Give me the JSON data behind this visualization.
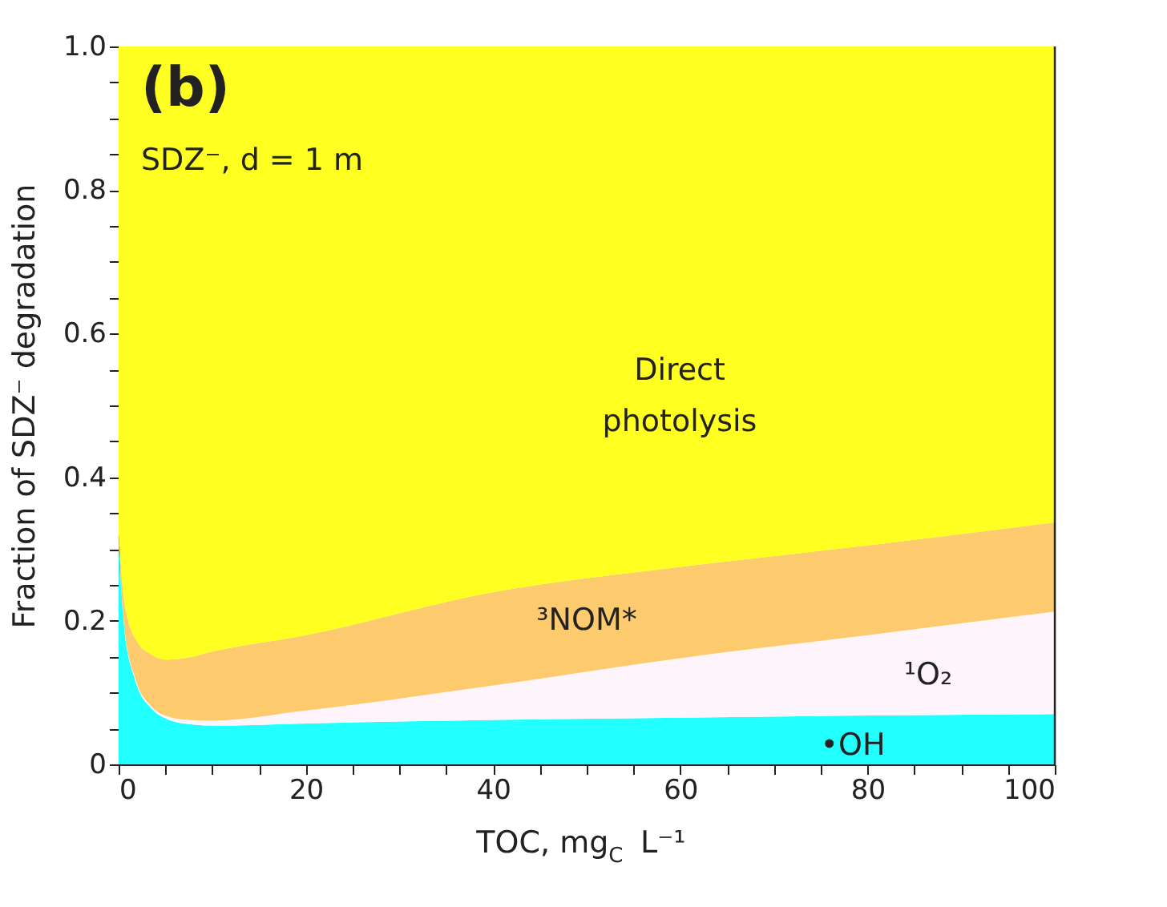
{
  "chart_data": {
    "type": "area",
    "stacked": true,
    "xlabel": "TOC, mg$_{C}$ L⁻¹",
    "ylabel": "Fraction of SDZ⁻ degradation",
    "x": [
      0,
      0.6,
      1.8,
      3.5,
      5.2,
      7.5,
      10,
      20,
      40,
      60,
      80,
      100
    ],
    "series": [
      {
        "name": "•OH",
        "color": "#22ffff",
        "values": [
          0.306,
          0.19,
          0.116,
          0.078,
          0.063,
          0.056,
          0.054,
          0.057,
          0.062,
          0.065,
          0.068,
          0.07
        ]
      },
      {
        "name": "¹O₂",
        "color": "#fdf5fb",
        "values": [
          0,
          0.002,
          0.003,
          0.003,
          0.004,
          0.006,
          0.007,
          0.018,
          0.048,
          0.083,
          0.112,
          0.143
        ]
      },
      {
        "name": "³NOM*",
        "color": "#fdcb6e",
        "values": [
          0.014,
          0.036,
          0.056,
          0.072,
          0.079,
          0.087,
          0.096,
          0.105,
          0.13,
          0.127,
          0.125,
          0.124
        ]
      },
      {
        "name": "Direct photolysis",
        "color": "#ffff22",
        "values": [
          0.68,
          0.772,
          0.825,
          0.847,
          0.854,
          0.851,
          0.843,
          0.82,
          0.76,
          0.725,
          0.695,
          0.663
        ]
      }
    ],
    "xlim": [
      0,
      100
    ],
    "xticks": [
      0,
      {
        "value": 5,
        "label": null
      },
      {
        "value": 10,
        "label": null
      },
      {
        "value": 15,
        "label": null
      },
      20,
      {
        "value": 25,
        "label": null
      },
      {
        "value": 30,
        "label": null
      },
      {
        "value": 35,
        "label": null
      },
      40,
      {
        "value": 45,
        "label": null
      },
      {
        "value": 50,
        "label": null
      },
      {
        "value": 55,
        "label": null
      },
      60,
      {
        "value": 65,
        "label": null
      },
      {
        "value": 70,
        "label": null
      },
      {
        "value": 75,
        "label": null
      },
      80,
      {
        "value": 85,
        "label": null
      },
      {
        "value": 90,
        "label": null
      },
      {
        "value": 95,
        "label": null
      },
      100
    ],
    "ylim": [
      0,
      1
    ],
    "yticks": [
      0,
      {
        "value": 0.05,
        "label": null
      },
      {
        "value": 0.1,
        "label": null
      },
      {
        "value": 0.15,
        "label": null
      },
      0.2,
      {
        "value": 0.25,
        "label": null
      },
      {
        "value": 0.3,
        "label": null
      },
      {
        "value": 0.35,
        "label": null
      },
      0.4,
      {
        "value": 0.45,
        "label": null
      },
      {
        "value": 0.5,
        "label": null
      },
      {
        "value": 0.55,
        "label": null
      },
      0.6,
      {
        "value": 0.65,
        "label": null
      },
      {
        "value": 0.7,
        "label": null
      },
      {
        "value": 0.75,
        "label": null
      },
      0.8,
      {
        "value": 0.85,
        "label": null
      },
      {
        "value": 0.9,
        "label": null
      },
      {
        "value": 0.95,
        "label": null
      },
      {
        "value": 1,
        "label": "1.0"
      }
    ],
    "grid": false,
    "annotations": [
      "(b)",
      "SDZ⁻, d = 1 m"
    ]
  }
}
